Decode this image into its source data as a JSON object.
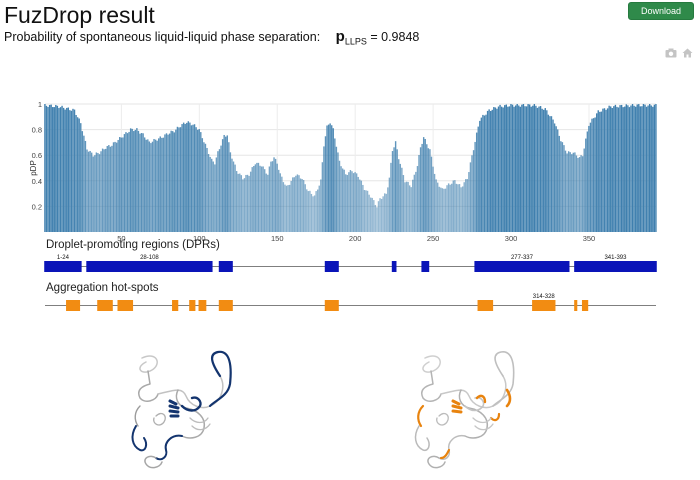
{
  "header": {
    "title": "FuzDrop result",
    "download_label": "Download"
  },
  "llps": {
    "text": "Probability of spontaneous liquid-liquid phase separation:",
    "symbol": "p",
    "subscript": "LLPS",
    "value": "= 0.9848"
  },
  "toolbar": {
    "camera_icon": "camera-icon",
    "home_icon": "home-icon"
  },
  "chart_data": {
    "type": "bar",
    "ylabel": "pDP",
    "xlim": [
      1,
      393
    ],
    "ylim": [
      0,
      1
    ],
    "xticks": [
      50,
      100,
      150,
      200,
      250,
      300,
      350
    ],
    "yticks": [
      0.2,
      0.4,
      0.6,
      0.8,
      1
    ],
    "bar_color": "#3f7fae",
    "profile_points": [
      [
        1,
        0.99
      ],
      [
        10,
        0.98
      ],
      [
        20,
        0.95
      ],
      [
        24,
        0.85
      ],
      [
        28,
        0.65
      ],
      [
        32,
        0.6
      ],
      [
        36,
        0.62
      ],
      [
        40,
        0.66
      ],
      [
        44,
        0.68
      ],
      [
        48,
        0.72
      ],
      [
        52,
        0.76
      ],
      [
        56,
        0.8
      ],
      [
        60,
        0.8
      ],
      [
        64,
        0.76
      ],
      [
        68,
        0.7
      ],
      [
        72,
        0.72
      ],
      [
        76,
        0.74
      ],
      [
        80,
        0.77
      ],
      [
        84,
        0.79
      ],
      [
        88,
        0.83
      ],
      [
        92,
        0.86
      ],
      [
        96,
        0.84
      ],
      [
        100,
        0.8
      ],
      [
        104,
        0.68
      ],
      [
        108,
        0.56
      ],
      [
        110,
        0.54
      ],
      [
        112,
        0.62
      ],
      [
        116,
        0.75
      ],
      [
        118,
        0.76
      ],
      [
        120,
        0.62
      ],
      [
        124,
        0.48
      ],
      [
        128,
        0.42
      ],
      [
        132,
        0.45
      ],
      [
        136,
        0.54
      ],
      [
        140,
        0.52
      ],
      [
        144,
        0.45
      ],
      [
        146,
        0.55
      ],
      [
        148,
        0.58
      ],
      [
        150,
        0.54
      ],
      [
        152,
        0.45
      ],
      [
        156,
        0.35
      ],
      [
        158,
        0.38
      ],
      [
        162,
        0.45
      ],
      [
        166,
        0.42
      ],
      [
        170,
        0.32
      ],
      [
        174,
        0.28
      ],
      [
        178,
        0.4
      ],
      [
        180,
        0.68
      ],
      [
        182,
        0.82
      ],
      [
        184,
        0.86
      ],
      [
        186,
        0.8
      ],
      [
        190,
        0.55
      ],
      [
        194,
        0.45
      ],
      [
        198,
        0.48
      ],
      [
        202,
        0.44
      ],
      [
        206,
        0.34
      ],
      [
        210,
        0.28
      ],
      [
        214,
        0.2
      ],
      [
        216,
        0.26
      ],
      [
        220,
        0.3
      ],
      [
        222,
        0.42
      ],
      [
        224,
        0.64
      ],
      [
        226,
        0.7
      ],
      [
        228,
        0.58
      ],
      [
        232,
        0.4
      ],
      [
        236,
        0.36
      ],
      [
        240,
        0.52
      ],
      [
        242,
        0.66
      ],
      [
        244,
        0.74
      ],
      [
        248,
        0.64
      ],
      [
        252,
        0.4
      ],
      [
        256,
        0.33
      ],
      [
        260,
        0.37
      ],
      [
        264,
        0.4
      ],
      [
        268,
        0.35
      ],
      [
        272,
        0.42
      ],
      [
        276,
        0.65
      ],
      [
        280,
        0.88
      ],
      [
        286,
        0.95
      ],
      [
        292,
        0.98
      ],
      [
        300,
        0.99
      ],
      [
        315,
        0.99
      ],
      [
        322,
        0.96
      ],
      [
        328,
        0.86
      ],
      [
        332,
        0.72
      ],
      [
        336,
        0.62
      ],
      [
        340,
        0.62
      ],
      [
        344,
        0.58
      ],
      [
        346,
        0.6
      ],
      [
        350,
        0.84
      ],
      [
        356,
        0.94
      ],
      [
        364,
        0.98
      ],
      [
        380,
        0.99
      ],
      [
        393,
        0.99
      ]
    ],
    "dpr": {
      "title": "Droplet-promoting regions (DPRs)",
      "regions": [
        {
          "start": 1,
          "end": 24,
          "label": "1-24"
        },
        {
          "start": 28,
          "end": 108,
          "label": "28-108"
        },
        {
          "start": 113,
          "end": 121,
          "label": ""
        },
        {
          "start": 181,
          "end": 189,
          "label": ""
        },
        {
          "start": 224,
          "end": 226,
          "label": ""
        },
        {
          "start": 243,
          "end": 247,
          "label": ""
        },
        {
          "start": 277,
          "end": 337,
          "label": "277-337"
        },
        {
          "start": 341,
          "end": 393,
          "label": "341-393"
        }
      ],
      "color": "#0a14b8"
    },
    "hotspots": {
      "title": "Aggregation hot-spots",
      "regions": [
        {
          "start": 15,
          "end": 23,
          "label": ""
        },
        {
          "start": 35,
          "end": 44,
          "label": ""
        },
        {
          "start": 48,
          "end": 57,
          "label": ""
        },
        {
          "start": 83,
          "end": 86,
          "label": ""
        },
        {
          "start": 94,
          "end": 97,
          "label": ""
        },
        {
          "start": 100,
          "end": 104,
          "label": ""
        },
        {
          "start": 113,
          "end": 121,
          "label": ""
        },
        {
          "start": 181,
          "end": 189,
          "label": ""
        },
        {
          "start": 279,
          "end": 288,
          "label": ""
        },
        {
          "start": 314,
          "end": 328,
          "label": "314-328"
        },
        {
          "start": 341,
          "end": 342,
          "label": ""
        },
        {
          "start": 346,
          "end": 349,
          "label": ""
        }
      ],
      "color": "#f28c12"
    }
  },
  "structures": [
    {
      "name": "dpr-structure",
      "highlight": "#13346e"
    },
    {
      "name": "hotspot-structure",
      "highlight": "#e8830e"
    }
  ]
}
